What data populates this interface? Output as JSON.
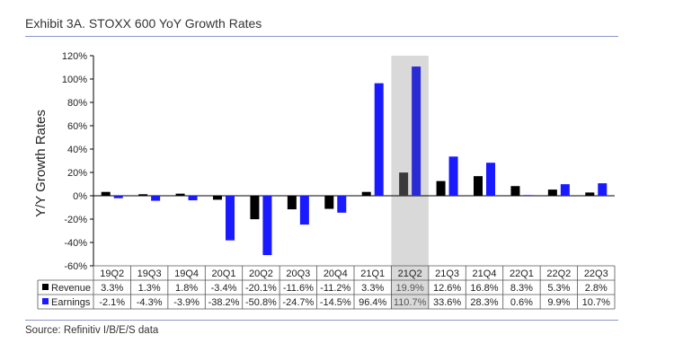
{
  "title": "Exhibit 3A.  STOXX 600 YoY Growth Rates",
  "source": "Source: Refinitiv I/B/E/S data",
  "chart_data": {
    "type": "bar",
    "ylabel": "Y/Y Growth Rates",
    "ylim": [
      -60,
      120
    ],
    "yticks": [
      "-60%",
      "-40%",
      "-20%",
      "0%",
      "20%",
      "40%",
      "60%",
      "80%",
      "100%",
      "120%"
    ],
    "ytick_values": [
      -60,
      -40,
      -20,
      0,
      20,
      40,
      60,
      80,
      100,
      120
    ],
    "categories": [
      "19Q2",
      "19Q3",
      "19Q4",
      "20Q1",
      "20Q2",
      "20Q3",
      "20Q4",
      "21Q1",
      "21Q2",
      "21Q3",
      "21Q4",
      "22Q1",
      "22Q2",
      "22Q3"
    ],
    "highlight_category": "21Q2",
    "series": [
      {
        "name": "Revenue",
        "color": "#000000",
        "highlight_color": "#3a3a3a",
        "values": [
          3.3,
          1.3,
          1.8,
          -3.4,
          -20.1,
          -11.6,
          -11.2,
          3.3,
          19.9,
          12.6,
          16.8,
          8.3,
          5.3,
          2.8
        ],
        "labels": [
          "3.3%",
          "1.3%",
          "1.8%",
          "-3.4%",
          "-20.1%",
          "-11.6%",
          "-11.2%",
          "3.3%",
          "19.9%",
          "12.6%",
          "16.8%",
          "8.3%",
          "5.3%",
          "2.8%"
        ]
      },
      {
        "name": "Earnings",
        "color": "#1a1aff",
        "highlight_color": "#2b2bd6",
        "values": [
          -2.1,
          -4.3,
          -3.9,
          -38.2,
          -50.8,
          -24.7,
          -14.5,
          96.4,
          110.7,
          33.6,
          28.3,
          0.6,
          9.9,
          10.7
        ],
        "labels": [
          "-2.1%",
          "-4.3%",
          "-3.9%",
          "-38.2%",
          "-50.8%",
          "-24.7%",
          "-14.5%",
          "96.4%",
          "110.7%",
          "33.6%",
          "28.3%",
          "0.6%",
          "9.9%",
          "10.7%"
        ]
      }
    ],
    "grid": false,
    "legend": "table-below"
  }
}
